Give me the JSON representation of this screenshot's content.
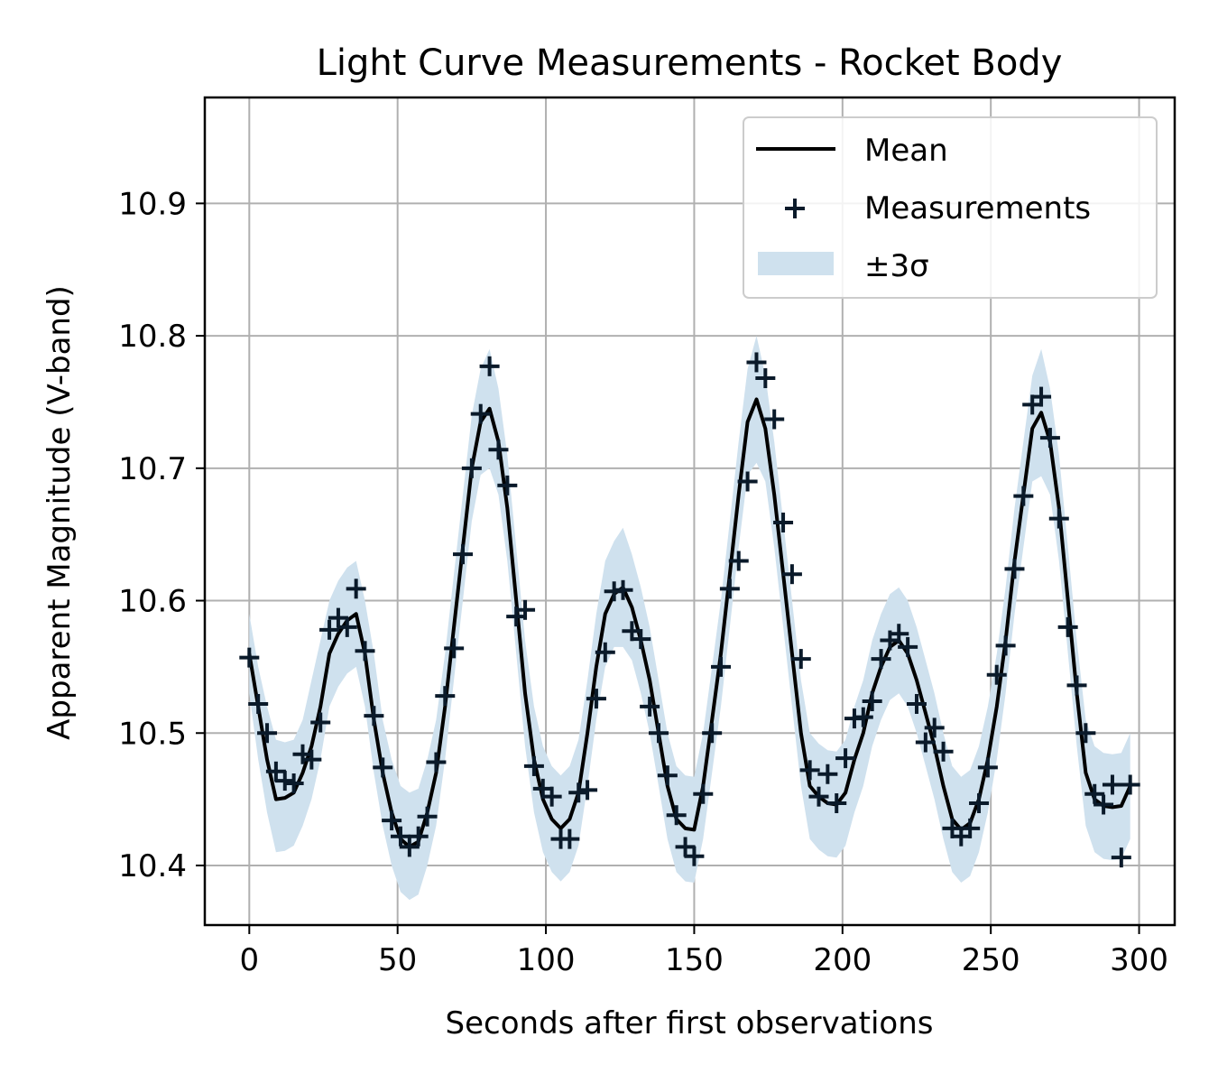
{
  "chart_data": {
    "type": "line",
    "title": "Light Curve Measurements - Rocket Body",
    "xlabel": "Seconds after first observations",
    "ylabel": "Apparent Magnitude (V-band)",
    "xlim": [
      -15,
      312
    ],
    "ylim": [
      10.355,
      10.98
    ],
    "xticks": [
      0,
      50,
      100,
      150,
      200,
      250,
      300
    ],
    "yticks": [
      10.4,
      10.5,
      10.6,
      10.7,
      10.8,
      10.9
    ],
    "grid": true,
    "legend_position": "top-right",
    "legend": {
      "mean": "Mean",
      "measurements": "Measurements",
      "band": "±3σ"
    },
    "colors": {
      "mean": "#000000",
      "band": "#cfe1ee",
      "markers": "#0a1a2a"
    },
    "x": [
      0,
      3,
      6,
      9,
      12,
      15,
      18,
      21,
      24,
      27,
      30,
      33,
      36,
      39,
      42,
      45,
      48,
      51,
      54,
      57,
      60,
      63,
      66,
      69,
      72,
      75,
      78,
      81,
      84,
      87,
      90,
      93,
      96,
      99,
      102,
      105,
      108,
      111,
      114,
      117,
      120,
      123,
      126,
      129,
      132,
      135,
      138,
      141,
      144,
      147,
      150,
      153,
      156,
      159,
      162,
      165,
      168,
      171,
      174,
      177,
      180,
      183,
      186,
      189,
      192,
      195,
      198,
      201,
      204,
      207,
      210,
      213,
      216,
      219,
      222,
      225,
      228,
      231,
      234,
      237,
      240,
      243,
      246,
      249,
      252,
      255,
      258,
      261,
      264,
      267,
      270,
      273,
      276,
      279,
      282,
      285,
      288,
      291,
      294,
      297
    ],
    "series": [
      {
        "role": "mean",
        "values": [
          10.56,
          10.52,
          10.48,
          10.45,
          10.451,
          10.455,
          10.47,
          10.49,
          10.52,
          10.56,
          10.575,
          10.585,
          10.59,
          10.56,
          10.51,
          10.47,
          10.44,
          10.42,
          10.414,
          10.418,
          10.44,
          10.47,
          10.52,
          10.58,
          10.64,
          10.7,
          10.735,
          10.745,
          10.72,
          10.67,
          10.6,
          10.53,
          10.48,
          10.45,
          10.435,
          10.428,
          10.435,
          10.455,
          10.5,
          10.55,
          10.59,
          10.605,
          10.61,
          10.595,
          10.57,
          10.54,
          10.5,
          10.46,
          10.435,
          10.428,
          10.427,
          10.46,
          10.51,
          10.56,
          10.62,
          10.68,
          10.735,
          10.752,
          10.73,
          10.68,
          10.62,
          10.56,
          10.5,
          10.46,
          10.452,
          10.447,
          10.446,
          10.455,
          10.48,
          10.5,
          10.53,
          10.55,
          10.565,
          10.57,
          10.56,
          10.54,
          10.515,
          10.49,
          10.46,
          10.435,
          10.427,
          10.432,
          10.45,
          10.48,
          10.52,
          10.57,
          10.63,
          10.68,
          10.73,
          10.742,
          10.72,
          10.67,
          10.6,
          10.53,
          10.47,
          10.45,
          10.445,
          10.444,
          10.445,
          10.46
        ]
      },
      {
        "role": "band",
        "upper": [
          10.59,
          10.55,
          10.52,
          10.495,
          10.493,
          10.495,
          10.51,
          10.54,
          10.57,
          10.6,
          10.615,
          10.625,
          10.63,
          10.6,
          10.56,
          10.51,
          10.48,
          10.46,
          10.455,
          10.458,
          10.48,
          10.51,
          10.56,
          10.62,
          10.68,
          10.74,
          10.775,
          10.79,
          10.76,
          10.71,
          10.64,
          10.57,
          10.52,
          10.49,
          10.475,
          10.468,
          10.475,
          10.495,
          10.54,
          10.59,
          10.63,
          10.645,
          10.655,
          10.635,
          10.61,
          10.58,
          10.54,
          10.5,
          10.475,
          10.468,
          10.467,
          10.5,
          10.55,
          10.6,
          10.66,
          10.72,
          10.775,
          10.8,
          10.77,
          10.72,
          10.66,
          10.6,
          10.54,
          10.5,
          10.492,
          10.487,
          10.486,
          10.495,
          10.52,
          10.54,
          10.57,
          10.59,
          10.605,
          10.61,
          10.6,
          10.58,
          10.555,
          10.53,
          10.5,
          10.475,
          10.467,
          10.472,
          10.49,
          10.52,
          10.56,
          10.61,
          10.67,
          10.72,
          10.77,
          10.79,
          10.76,
          10.71,
          10.64,
          10.57,
          10.51,
          10.49,
          10.485,
          10.484,
          10.485,
          10.5
        ],
        "lower": [
          10.53,
          10.48,
          10.44,
          10.41,
          10.411,
          10.415,
          10.43,
          10.45,
          10.48,
          10.52,
          10.535,
          10.545,
          10.55,
          10.52,
          10.47,
          10.43,
          10.4,
          10.38,
          10.374,
          10.378,
          10.4,
          10.43,
          10.48,
          10.54,
          10.6,
          10.66,
          10.695,
          10.7,
          10.68,
          10.63,
          10.56,
          10.49,
          10.44,
          10.41,
          10.395,
          10.388,
          10.395,
          10.415,
          10.46,
          10.51,
          10.55,
          10.565,
          10.565,
          10.555,
          10.53,
          10.5,
          10.46,
          10.42,
          10.395,
          10.388,
          10.387,
          10.42,
          10.47,
          10.52,
          10.58,
          10.64,
          10.695,
          10.704,
          10.69,
          10.64,
          10.58,
          10.52,
          10.46,
          10.42,
          10.412,
          10.407,
          10.406,
          10.415,
          10.44,
          10.46,
          10.49,
          10.51,
          10.525,
          10.53,
          10.52,
          10.5,
          10.475,
          10.45,
          10.42,
          10.395,
          10.387,
          10.392,
          10.41,
          10.44,
          10.48,
          10.53,
          10.59,
          10.64,
          10.69,
          10.694,
          10.68,
          10.63,
          10.56,
          10.49,
          10.43,
          10.41,
          10.405,
          10.404,
          10.405,
          10.42
        ]
      },
      {
        "role": "measurements",
        "values": [
          10.557,
          10.522,
          10.5,
          10.471,
          10.464,
          10.462,
          10.484,
          10.48,
          10.508,
          10.578,
          10.587,
          10.58,
          10.609,
          10.562,
          10.513,
          10.474,
          10.434,
          10.422,
          10.414,
          10.422,
          10.437,
          10.478,
          10.528,
          10.564,
          10.635,
          10.7,
          10.741,
          10.777,
          10.714,
          10.687,
          10.588,
          10.593,
          10.475,
          10.458,
          10.452,
          10.42,
          10.42,
          10.455,
          10.457,
          10.526,
          10.561,
          10.607,
          10.608,
          10.577,
          10.571,
          10.52,
          10.5,
          10.468,
          10.438,
          10.414,
          10.407,
          10.454,
          10.5,
          10.55,
          10.609,
          10.63,
          10.69,
          10.78,
          10.768,
          10.737,
          10.659,
          10.62,
          10.556,
          10.472,
          10.452,
          10.469,
          10.447,
          10.481,
          10.511,
          10.512,
          10.524,
          10.556,
          10.57,
          10.575,
          10.565,
          10.522,
          10.493,
          10.504,
          10.486,
          10.428,
          10.422,
          10.428,
          10.447,
          10.474,
          10.544,
          10.566,
          10.624,
          10.679,
          10.748,
          10.754,
          10.723,
          10.662,
          10.58,
          10.536,
          10.5,
          10.454,
          10.446,
          10.461,
          10.406,
          10.461
        ]
      }
    ]
  }
}
